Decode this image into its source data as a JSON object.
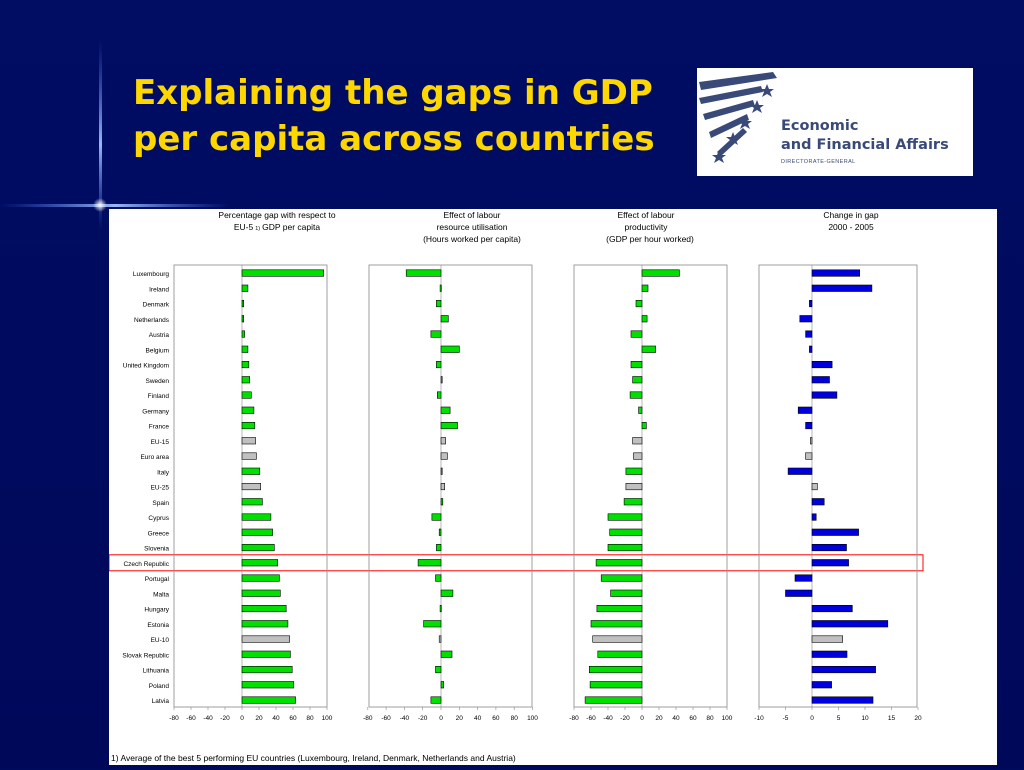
{
  "slide": {
    "title_line1": "Explaining the gaps in GDP",
    "title_line2": "per capita across countries"
  },
  "logo": {
    "line1": "Economic",
    "line2": "and Financial Affairs",
    "line3": "DIRECTORATE-GENERAL"
  },
  "footnote": "1) Average of the best 5 performing EU countries (Luxembourg, Ireland, Denmark, Netherlands and Austria)",
  "highlighted_country": "Czech Republic",
  "colors": {
    "country": "#00e000",
    "aggregate": "#c0c0c0",
    "change": "#0000dd",
    "highlight": "#ff0000"
  },
  "chart_data": [
    {
      "type": "bar",
      "orientation": "horizontal",
      "title_lines": [
        "Percentage gap with respect to",
        "EU-5",
        "1)",
        "GDP per capita"
      ],
      "categories": [
        "Luxembourg",
        "Ireland",
        "Denmark",
        "Netherlands",
        "Austria",
        "Belgium",
        "United Kingdom",
        "Sweden",
        "Finland",
        "Germany",
        "France",
        "EU-15",
        "Euro area",
        "Italy",
        "EU-25",
        "Spain",
        "Cyprus",
        "Greece",
        "Slovenia",
        "Czech Republic",
        "Portugal",
        "Malta",
        "Hungary",
        "Estonia",
        "EU-10",
        "Slovak Republic",
        "Lithuania",
        "Poland",
        "Latvia"
      ],
      "values": [
        96,
        7,
        2,
        2,
        3,
        7,
        8,
        9,
        11,
        14,
        15,
        16,
        17,
        21,
        22,
        24,
        34,
        36,
        38,
        42,
        44,
        45,
        52,
        54,
        56,
        57,
        59,
        61,
        63
      ],
      "aggregates": [
        "EU-15",
        "Euro area",
        "EU-25",
        "EU-10"
      ],
      "xlim": [
        -80,
        100
      ],
      "xticks": [
        -80,
        -60,
        -40,
        -20,
        0,
        20,
        40,
        60,
        80,
        100
      ]
    },
    {
      "type": "bar",
      "orientation": "horizontal",
      "title_lines": [
        "Effect of labour",
        "resource utilisation",
        "(Hours worked per capita)"
      ],
      "values": [
        -38,
        -1,
        -5,
        8,
        -11,
        20,
        -5,
        0,
        -4,
        10,
        18,
        5,
        7,
        1,
        4,
        2,
        -10,
        -2,
        -5,
        -25,
        -6,
        13,
        -1,
        -19,
        -2,
        12,
        -6,
        3,
        -11
      ],
      "xlim": [
        -80,
        100
      ],
      "xticks": [
        -80,
        -60,
        -40,
        -20,
        0,
        20,
        40,
        60,
        80,
        100
      ]
    },
    {
      "type": "bar",
      "orientation": "horizontal",
      "title_lines": [
        "Effect of labour",
        "productivity",
        "(GDP per hour worked)"
      ],
      "values": [
        44,
        7,
        -7,
        6,
        -13,
        16,
        -13,
        -11,
        -14,
        -4,
        5,
        -11,
        -10,
        -19,
        -19,
        -21,
        -40,
        -38,
        -40,
        -54,
        -48,
        -37,
        -53,
        -60,
        -58,
        -52,
        -62,
        -61,
        -67
      ],
      "xlim": [
        -80,
        100
      ],
      "xticks": [
        -80,
        -60,
        -40,
        -20,
        0,
        20,
        40,
        60,
        80,
        100
      ]
    },
    {
      "type": "bar",
      "orientation": "horizontal",
      "title_lines": [
        "Change in gap",
        "2000 - 2005"
      ],
      "values": [
        9,
        11.3,
        -0.5,
        -2.3,
        -1.2,
        -0.5,
        3.8,
        3.3,
        4.7,
        -2.6,
        -1.2,
        -0.3,
        -1.2,
        -4.5,
        1,
        2.3,
        0.8,
        8.8,
        6.5,
        6.9,
        -3.2,
        -5,
        7.6,
        14.3,
        5.8,
        6.6,
        12,
        3.7,
        11.5
      ],
      "xlim": [
        -10,
        20
      ],
      "xticks": [
        -10,
        -5,
        0,
        5,
        10,
        15,
        20
      ]
    }
  ]
}
